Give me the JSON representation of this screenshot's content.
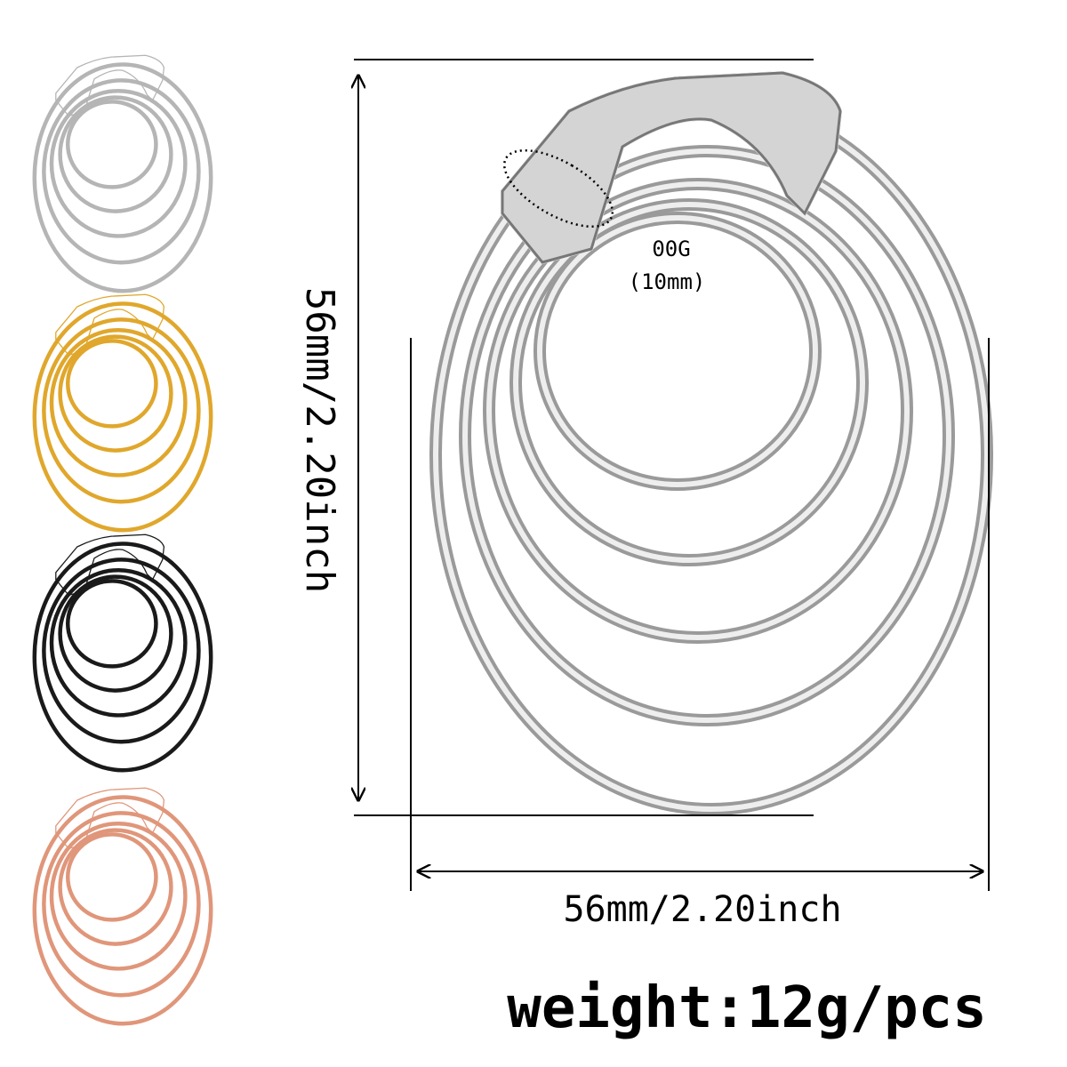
{
  "main_image": {
    "gauge": "00G",
    "gauge_size": "(10mm)",
    "height_label": "56mm/2.20inch",
    "width_label": "56mm/2.20inch"
  },
  "weight": "weight:12g/pcs"
}
